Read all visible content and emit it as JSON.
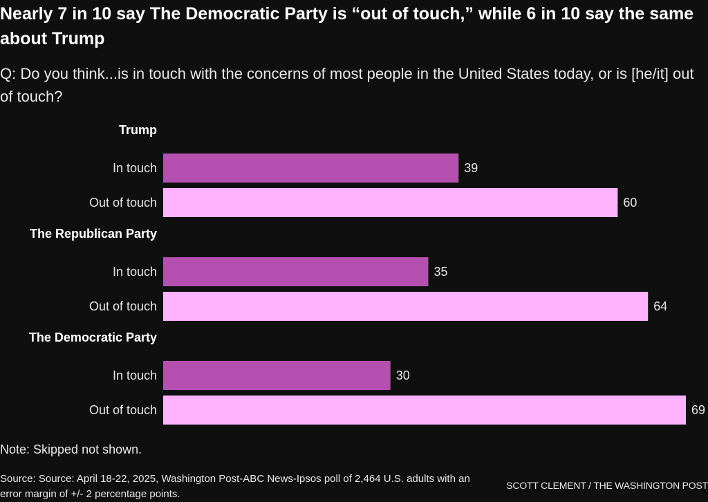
{
  "header": {
    "title": "Nearly 7 in 10 say The Democratic Party is “out of touch,” while 6 in 10 say the same about Trump",
    "question": "Q: Do you think...is in touch with the concerns of most people in the United States today, or is [he/it] out of touch?"
  },
  "footer": {
    "note": "Note: Skipped not shown.",
    "source": "Source: Source: April 18-22, 2025, Washington Post-ABC News-Ipsos poll of 2,464 U.S. adults with an error margin of +/- 2 percentage points.",
    "credit": "SCOTT CLEMENT / THE WASHINGTON POST"
  },
  "colors": {
    "background": "#0f0f0f",
    "in_touch": "#b54fb0",
    "out_of_touch": "#ffb3ff",
    "text": "#ffffff"
  },
  "chart_data": {
    "type": "bar",
    "orientation": "horizontal",
    "title": "Nearly 7 in 10 say The Democratic Party is “out of touch,” while 6 in 10 say the same about Trump",
    "xlabel": "",
    "ylabel": "",
    "xlim": [
      0,
      69
    ],
    "grid": false,
    "units": "percent",
    "groups": [
      {
        "name": "Trump",
        "bars": [
          {
            "label": "In touch",
            "value": 39
          },
          {
            "label": "Out of touch",
            "value": 60
          }
        ]
      },
      {
        "name": "The Republican Party",
        "bars": [
          {
            "label": "In touch",
            "value": 35
          },
          {
            "label": "Out of touch",
            "value": 64
          }
        ]
      },
      {
        "name": "The Democratic Party",
        "bars": [
          {
            "label": "In touch",
            "value": 30
          },
          {
            "label": "Out of touch",
            "value": 69
          }
        ]
      }
    ]
  }
}
